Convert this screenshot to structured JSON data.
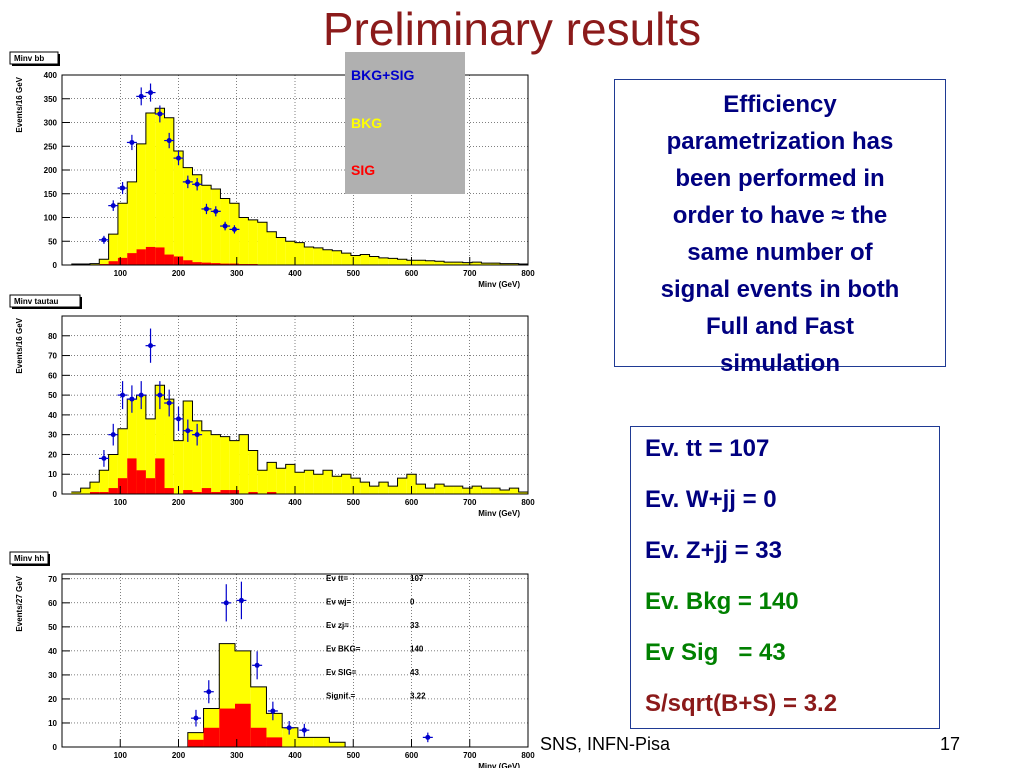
{
  "title": "Preliminary results",
  "efficiency_text": [
    "Efficiency",
    "parametrization has",
    "been performed in",
    "order to have ≈ the",
    "same number of",
    "signal events in both",
    "Full and Fast",
    "simulation"
  ],
  "results_lines": [
    {
      "text": "Ev. tt = 107",
      "color": "#000080"
    },
    {
      "text": "Ev. W+jj = 0",
      "color": "#000080"
    },
    {
      "text": "Ev. Z+jj = 33",
      "color": "#000080"
    },
    {
      "text": "Ev. Bkg = 140",
      "color": "#008000"
    },
    {
      "text": "Ev Sig   = 43",
      "color": "#008000"
    },
    {
      "text": "S/sqrt(B+S) = 3.2",
      "color": "#8b1a1a"
    }
  ],
  "footer": "SNS, INFN-Pisa",
  "page_number": "17",
  "colors": {
    "bkg": "#ffff00",
    "sig": "#ff0000",
    "data_points": "#0000cc",
    "title": "#8b1a1a"
  },
  "legend": {
    "items": [
      {
        "label": "BKG+SIG",
        "color": "#0000cc"
      },
      {
        "label": "BKG",
        "color": "#ffff00"
      },
      {
        "label": "SIG",
        "color": "#ff0000"
      }
    ]
  },
  "chart_data": [
    {
      "type": "bar",
      "title": "Minv bb",
      "xlabel": "Minv (GeV)",
      "ylabel": "Events/16 GeV",
      "xlim": [
        0,
        800
      ],
      "ylim": [
        0,
        400
      ],
      "xticks": [
        100,
        200,
        300,
        400,
        500,
        600,
        700,
        800
      ],
      "yticks": [
        0,
        50,
        100,
        150,
        200,
        250,
        300,
        350,
        400
      ],
      "bin_width": 16,
      "x_start": 16,
      "series": [
        {
          "name": "BKG",
          "values": [
            2,
            2,
            3,
            12,
            65,
            130,
            175,
            255,
            320,
            330,
            310,
            240,
            205,
            190,
            168,
            160,
            140,
            130,
            100,
            95,
            90,
            70,
            58,
            50,
            47,
            38,
            36,
            32,
            30,
            25,
            20,
            22,
            18,
            15,
            14,
            12,
            10,
            10,
            9,
            8,
            6,
            6,
            5,
            6,
            4,
            4,
            3,
            3,
            2
          ]
        },
        {
          "name": "SIG",
          "values": [
            0,
            0,
            0,
            2,
            8,
            15,
            25,
            33,
            38,
            37,
            22,
            18,
            10,
            6,
            5,
            4,
            3,
            3,
            2,
            2,
            1,
            1,
            1,
            1,
            1,
            1,
            1,
            1,
            1,
            1,
            1,
            1,
            1,
            1,
            1,
            1,
            0,
            0,
            0,
            0,
            0,
            0,
            0,
            0,
            0,
            0,
            0,
            0,
            0
          ]
        },
        {
          "name": "BKG+SIG",
          "points": [
            [
              72,
              53
            ],
            [
              88,
              125
            ],
            [
              104,
              162
            ],
            [
              120,
              258
            ],
            [
              136,
              355
            ],
            [
              152,
              363
            ],
            [
              168,
              318
            ],
            [
              184,
              262
            ],
            [
              200,
              225
            ],
            [
              216,
              175
            ],
            [
              232,
              170
            ],
            [
              248,
              118
            ],
            [
              264,
              113
            ],
            [
              280,
              82
            ],
            [
              296,
              75
            ]
          ]
        }
      ]
    },
    {
      "type": "bar",
      "title": "Minv tautau",
      "xlabel": "Minv (GeV)",
      "ylabel": "Events/16 GeV",
      "xlim": [
        0,
        800
      ],
      "ylim": [
        0,
        90
      ],
      "xticks": [
        100,
        200,
        300,
        400,
        500,
        600,
        700,
        800
      ],
      "yticks": [
        0,
        10,
        20,
        30,
        40,
        50,
        60,
        70,
        80
      ],
      "bin_width": 16,
      "x_start": 16,
      "series": [
        {
          "name": "BKG",
          "values": [
            1,
            3,
            6,
            12,
            20,
            33,
            48,
            50,
            38,
            55,
            48,
            27,
            47,
            37,
            32,
            30,
            29,
            27,
            30,
            22,
            12,
            16,
            13,
            15,
            11,
            12,
            10,
            12,
            9,
            10,
            8,
            6,
            4,
            6,
            4,
            8,
            10,
            5,
            3,
            5,
            4,
            4,
            3,
            4,
            3,
            3,
            2,
            3,
            1
          ]
        },
        {
          "name": "SIG",
          "values": [
            0,
            0,
            1,
            1,
            3,
            8,
            18,
            12,
            8,
            18,
            3,
            0,
            2,
            1,
            3,
            1,
            2,
            2,
            0,
            1,
            0,
            1,
            0,
            0,
            0,
            0,
            0,
            0,
            0,
            0,
            0,
            0,
            0,
            0,
            0,
            0,
            0,
            0,
            0,
            0,
            0,
            0,
            0,
            0,
            0,
            0,
            0,
            0,
            0
          ]
        },
        {
          "name": "BKG+SIG",
          "points": [
            [
              72,
              18
            ],
            [
              88,
              30
            ],
            [
              104,
              50
            ],
            [
              120,
              48
            ],
            [
              136,
              50
            ],
            [
              152,
              75
            ],
            [
              168,
              50
            ],
            [
              184,
              46
            ],
            [
              200,
              38
            ],
            [
              216,
              32
            ],
            [
              232,
              30
            ]
          ]
        }
      ]
    },
    {
      "type": "bar",
      "title": "Minv hh",
      "xlabel": "Minv (GeV)",
      "ylabel": "Events/27 GeV",
      "xlim": [
        0,
        800
      ],
      "ylim": [
        0,
        72
      ],
      "xticks": [
        100,
        200,
        300,
        400,
        500,
        600,
        700,
        800
      ],
      "yticks": [
        0,
        10,
        20,
        30,
        40,
        50,
        60,
        70
      ],
      "bin_width": 27,
      "x_start": 0,
      "series": [
        {
          "name": "BKG",
          "values": [
            0,
            0,
            0,
            0,
            0,
            0,
            0,
            0,
            6,
            16,
            43,
            40,
            25,
            14,
            8,
            4,
            4,
            2,
            0,
            0,
            0,
            0,
            0,
            0,
            0,
            0,
            0,
            0,
            0
          ]
        },
        {
          "name": "SIG",
          "values": [
            0,
            0,
            0,
            0,
            0,
            0,
            0,
            0,
            3,
            8,
            16,
            18,
            8,
            4,
            0,
            0,
            0,
            0,
            0,
            0,
            0,
            0,
            0,
            0,
            0,
            0,
            0,
            0,
            0
          ]
        },
        {
          "name": "BKG+SIG",
          "points": [
            [
              230,
              12
            ],
            [
              252,
              23
            ],
            [
              282,
              60
            ],
            [
              308,
              61
            ],
            [
              335,
              34
            ],
            [
              362,
              15
            ],
            [
              390,
              8
            ],
            [
              416,
              7
            ],
            [
              628,
              4
            ]
          ]
        }
      ],
      "stats": [
        {
          "label": "Ev tt=",
          "value": "107"
        },
        {
          "label": "Ev wj=",
          "value": "0"
        },
        {
          "label": "Ev zj=",
          "value": "33"
        },
        {
          "label": "Ev BKG=",
          "value": "140"
        },
        {
          "label": "Ev SIG=",
          "value": "43"
        },
        {
          "label": "Signif.=",
          "value": "3.22"
        }
      ]
    }
  ]
}
